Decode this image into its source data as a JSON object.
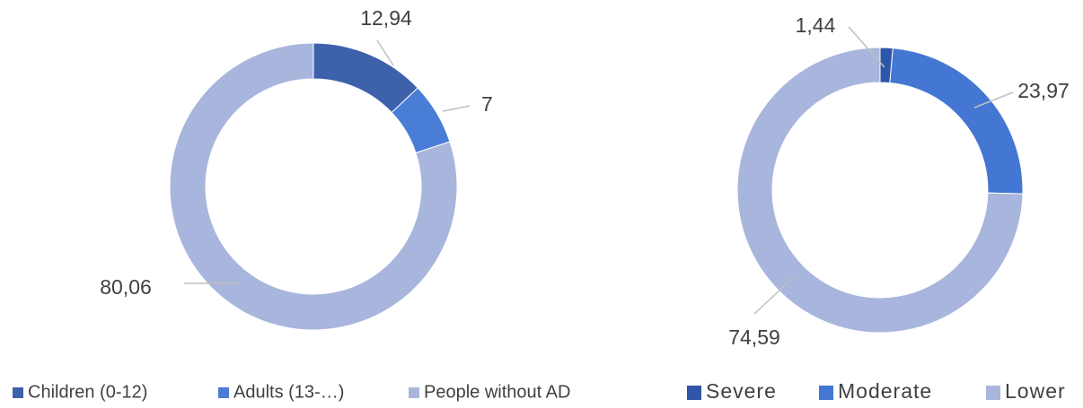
{
  "chart_data": [
    {
      "type": "donut",
      "categories": [
        "Children (0-12)",
        "Adults (13-…)",
        "People without AD"
      ],
      "values": [
        12.94,
        7,
        80.06
      ],
      "value_labels": [
        "12,94",
        "7",
        "80,06"
      ],
      "colors": [
        "#3d61ab",
        "#4a7dd6",
        "#a8b5dc"
      ],
      "legend": "bottom"
    },
    {
      "type": "donut",
      "categories": [
        "Severe",
        "Moderate",
        "Lower"
      ],
      "values": [
        1.44,
        23.97,
        74.59
      ],
      "value_labels": [
        "1,44",
        "23,97",
        "74,59"
      ],
      "colors": [
        "#2f55a8",
        "#4477d3",
        "#a8b5dc"
      ],
      "legend": "bottom"
    }
  ]
}
